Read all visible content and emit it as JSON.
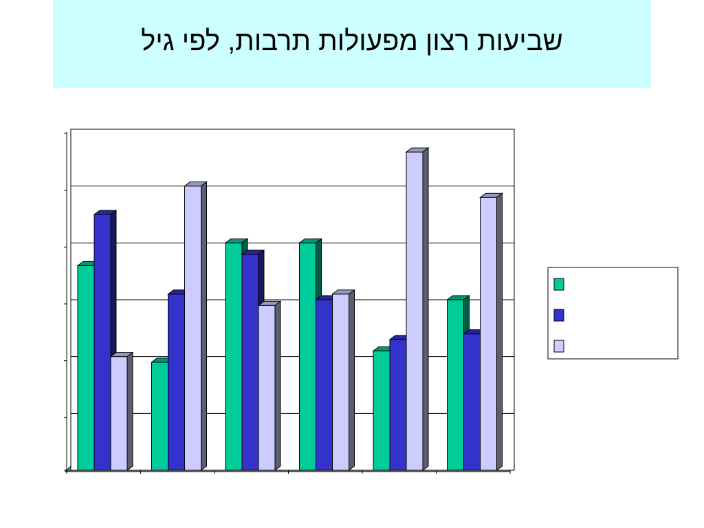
{
  "slide": {
    "title": "שביעות רצון מפעולות תרבות, לפי גיל"
  },
  "colors": {
    "series": [
      "#00cc99",
      "#3333cc",
      "#ccccff"
    ],
    "title_background": "#ccffff"
  },
  "chart_data": {
    "type": "bar",
    "title": "",
    "categories": [
      "",
      "",
      "",
      "",
      "",
      ""
    ],
    "series": [
      {
        "values": [
          3.6,
          1.9,
          4.0,
          4.0,
          2.1,
          3.0
        ]
      },
      {
        "values": [
          4.5,
          3.1,
          3.8,
          3.0,
          2.3,
          2.4
        ]
      },
      {
        "values": [
          2.0,
          5.0,
          2.9,
          3.1,
          5.6,
          4.8
        ]
      }
    ],
    "ylim": [
      0,
      6
    ],
    "y_gridlines": true,
    "bar_style": "3d",
    "legend_position": "right"
  }
}
